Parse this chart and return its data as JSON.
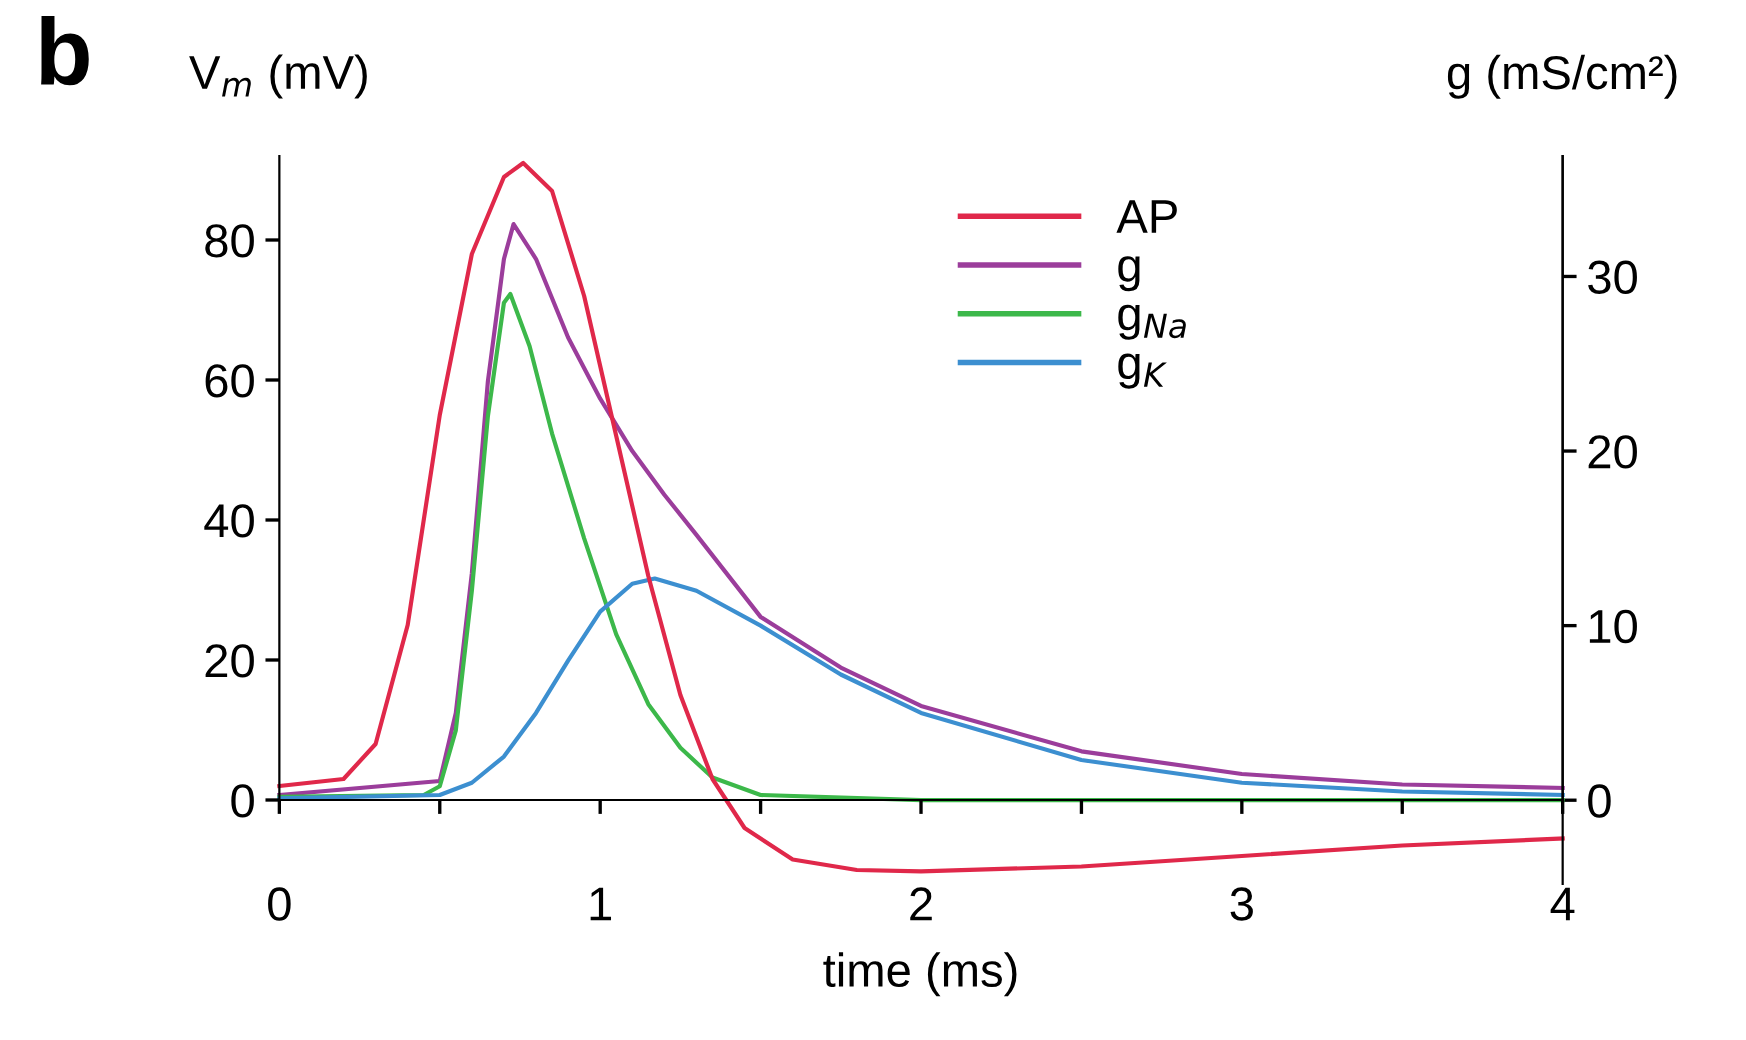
{
  "chart_data": {
    "type": "line",
    "xlabel": "time (ms)",
    "ylabel": "V$_{m}$ (mV)",
    "y2label": "g (mS/cm²)",
    "annotations": [
      "b"
    ],
    "xlim": [
      0,
      4
    ],
    "xticks": [
      0,
      {
        "value": 0.5,
        "label": null
      },
      1,
      {
        "value": 1.5,
        "label": null
      },
      2,
      {
        "value": 2.5,
        "label": null
      },
      3,
      {
        "value": 3.5,
        "label": null
      },
      4
    ],
    "ylim": [
      -12,
      92
    ],
    "yticks": [
      0,
      20,
      40,
      60,
      80
    ],
    "y2lim": [
      -4.8,
      36.9
    ],
    "y2ticks": [
      0,
      10,
      20,
      30
    ],
    "grid": false,
    "legend": "top",
    "marker": "none",
    "line_style": "solid",
    "series": [
      {
        "name": "AP",
        "color": "#e0284a",
        "x": [
          0,
          0.2,
          0.3,
          0.4,
          0.5,
          0.6,
          0.7,
          0.76,
          0.85,
          0.95,
          1.05,
          1.15,
          1.25,
          1.35,
          1.45,
          1.6,
          1.8,
          2.0,
          2.5,
          3.0,
          3.5,
          4.0
        ],
        "values": [
          2,
          3,
          8,
          25,
          55,
          78,
          89,
          91,
          87,
          72,
          52,
          32,
          15,
          3,
          -4,
          -8.5,
          -10,
          -10.2,
          -9.5,
          -8,
          -6.5,
          -5.5
        ]
      },
      {
        "name": "g",
        "color": "#9b3d9b",
        "axis": "y2",
        "x": [
          0,
          0.5,
          0.55,
          0.6,
          0.65,
          0.7,
          0.73,
          0.8,
          0.9,
          1.0,
          1.1,
          1.2,
          1.3,
          1.5,
          1.75,
          2.0,
          2.5,
          3.0,
          3.5,
          4.0
        ],
        "values": [
          0.3,
          1.1,
          5,
          13,
          24,
          31,
          33,
          31,
          26.5,
          23,
          20,
          17.5,
          15.2,
          10.5,
          7.6,
          5.4,
          2.8,
          1.5,
          0.9,
          0.7
        ]
      },
      {
        "name": "g$_{Na}$",
        "color": "#3cb84a",
        "axis": "y2",
        "x": [
          0,
          0.45,
          0.5,
          0.55,
          0.6,
          0.65,
          0.7,
          0.72,
          0.78,
          0.85,
          0.95,
          1.05,
          1.15,
          1.25,
          1.35,
          1.5,
          2.0,
          4.0
        ],
        "values": [
          0.2,
          0.3,
          0.8,
          4,
          12,
          22,
          28.5,
          29,
          26,
          21,
          15,
          9.5,
          5.5,
          3,
          1.3,
          0.3,
          0,
          0
        ]
      },
      {
        "name": "g$_{K}$",
        "color": "#3c8fd0",
        "axis": "y2",
        "x": [
          0,
          0.5,
          0.6,
          0.7,
          0.8,
          0.9,
          1.0,
          1.1,
          1.17,
          1.3,
          1.5,
          1.75,
          2.0,
          2.5,
          3.0,
          3.5,
          4.0
        ],
        "values": [
          0.1,
          0.3,
          1,
          2.5,
          5,
          8,
          10.8,
          12.4,
          12.7,
          12,
          10,
          7.2,
          5,
          2.3,
          1,
          0.5,
          0.3
        ]
      }
    ]
  }
}
